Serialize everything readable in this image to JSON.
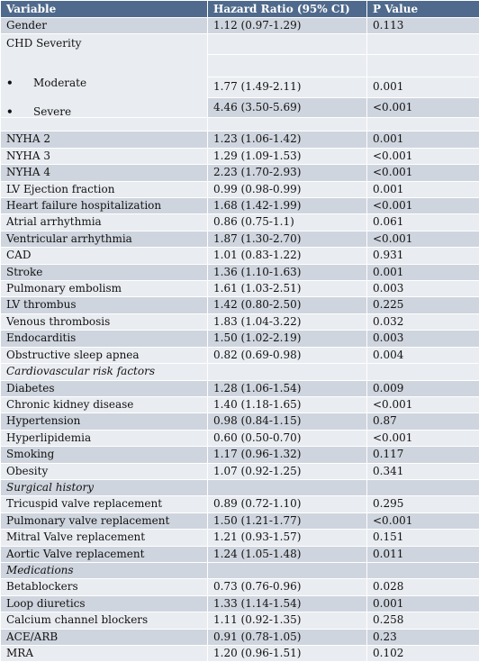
{
  "header": {
    "variable": "Variable",
    "hazard_ratio": "Hazard Ratio (95% CI)",
    "p_value": "P Value"
  },
  "gender": {
    "variable": "Gender",
    "hr": "1.12 (0.97-1.29)",
    "p": "0.113"
  },
  "chd": {
    "title": "CHD Severity",
    "bullet": "•",
    "moderate": {
      "variable": "Moderate",
      "hr": "1.77 (1.49-2.11)",
      "p": "0.001"
    },
    "severe": {
      "variable": "Severe",
      "hr": "4.46 (3.50-5.69)",
      "p": "<0.001"
    }
  },
  "rows": [
    {
      "variable": "NYHA 2",
      "hr": "1.23 (1.06-1.42)",
      "p": "0.001"
    },
    {
      "variable": "NYHA 3",
      "hr": "1.29 (1.09-1.53)",
      "p": "<0.001"
    },
    {
      "variable": "NYHA 4",
      "hr": "2.23 (1.70-2.93)",
      "p": "<0.001"
    },
    {
      "variable": " LV Ejection fraction",
      "hr": "0.99 (0.98-0.99)",
      "p": "0.001"
    },
    {
      "variable": "Heart failure hospitalization",
      "hr": "1.68 (1.42-1.99)",
      "p": "<0.001"
    },
    {
      "variable": "Atrial arrhythmia",
      "hr": "0.86 (0.75-1.1)",
      "p": "0.061"
    },
    {
      "variable": "Ventricular arrhythmia",
      "hr": "1.87 (1.30-2.70)",
      "p": "<0.001"
    },
    {
      "variable": "CAD",
      "hr": "1.01 (0.83-1.22)",
      "p": "0.931"
    },
    {
      "variable": "Stroke",
      "hr": "1.36 (1.10-1.63)",
      "p": "0.001"
    },
    {
      "variable": "Pulmonary embolism",
      "hr": "1.61 (1.03-2.51)",
      "p": "0.003"
    },
    {
      "variable": "LV thrombus",
      "hr": "1.42 (0.80-2.50)",
      "p": "0.225"
    },
    {
      "variable": "Venous thrombosis",
      "hr": "1.83 (1.04-3.22)",
      "p": "0.032"
    },
    {
      "variable": "Endocarditis",
      "hr": "1.50 (1.02-2.19)",
      "p": "0.003"
    },
    {
      "variable": "Obstructive sleep apnea",
      "hr": "0.82 (0.69-0.98)",
      "p": "0.004"
    }
  ],
  "cardio_heading": "Cardiovascular risk factors",
  "cardio_rows": [
    {
      "variable": "Diabetes",
      "hr": "1.28 (1.06-1.54)",
      "p": "0.009"
    },
    {
      "variable": "Chronic kidney disease",
      "hr": "1.40 (1.18-1.65)",
      "p": "<0.001"
    },
    {
      "variable": "Hypertension",
      "hr": "0.98 (0.84-1.15)",
      "p": "0.87"
    },
    {
      "variable": "Hyperlipidemia",
      "hr": "0.60 (0.50-0.70)",
      "p": "<0.001"
    },
    {
      "variable": "Smoking",
      "hr": "1.17 (0.96-1.32)",
      "p": "0.117"
    },
    {
      "variable": "Obesity",
      "hr": "1.07 (0.92-1.25)",
      "p": "0.341"
    }
  ],
  "surgical_heading": "Surgical history",
  "surgical_rows": [
    {
      "variable": "Tricuspid valve replacement",
      "hr": "0.89 (0.72-1.10)",
      "p": "0.295"
    },
    {
      "variable": "Pulmonary valve replacement",
      "hr": "1.50 (1.21-1.77)",
      "p": "<0.001"
    },
    {
      "variable": "Mitral Valve replacement",
      "hr": "1.21 (0.93-1.57)",
      "p": "0.151"
    },
    {
      "variable": "Aortic Valve replacement",
      "hr": "1.24 (1.05-1.48)",
      "p": "0.011"
    }
  ],
  "medications_heading": "Medications",
  "medication_rows": [
    {
      "variable": "Betablockers",
      "hr": "0.73 (0.76-0.96)",
      "p": "0.028"
    },
    {
      "variable": "Loop diuretics",
      "hr": "1.33 (1.14-1.54)",
      "p": "0.001"
    },
    {
      "variable": "Calcium channel blockers",
      "hr": "1.11 (0.92-1.35)",
      "p": "0.258"
    },
    {
      "variable": "ACE/ARB",
      "hr": "0.91 (0.78-1.05)",
      "p": "0.23"
    },
    {
      "variable": "MRA",
      "hr": "1.20 (0.96-1.51)",
      "p": "0.102"
    }
  ],
  "colors": {
    "header_bg": "#4f6a8c",
    "band_dark": "#cfd5de",
    "band_light": "#e9ecf1"
  }
}
